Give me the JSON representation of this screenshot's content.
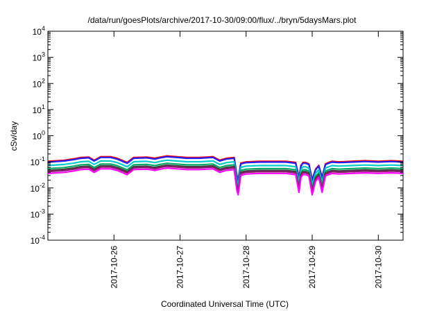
{
  "chart_data": {
    "type": "line",
    "title": "/data/run/goesPlots/archive/2017-10-30/09:00/flux/../bryn/5daysMars.plot",
    "xlabel": "Coordinated Universal Time (UTC)",
    "ylabel": "cSv/day",
    "y_scale": "log",
    "ylim": [
      0.0001,
      10000
    ],
    "xlim": [
      "2017-10-25 00:00",
      "2017-10-30 09:00"
    ],
    "x_ticks": [
      "2017-10-26",
      "2017-10-27",
      "2017-10-28",
      "2017-10-29",
      "2017-10-30"
    ],
    "y_ticks": [
      {
        "base": "10",
        "exp": "-4"
      },
      {
        "base": "10",
        "exp": "-3"
      },
      {
        "base": "10",
        "exp": "-2"
      },
      {
        "base": "10",
        "exp": "-1"
      },
      {
        "base": "10",
        "exp": "0"
      },
      {
        "base": "10",
        "exp": "1"
      },
      {
        "base": "10",
        "exp": "2"
      },
      {
        "base": "10",
        "exp": "3"
      },
      {
        "base": "10",
        "exp": "4"
      }
    ],
    "grid": false,
    "legend": "none",
    "base_profile": {
      "x_days": [
        0.0,
        0.25,
        0.4,
        0.5,
        0.62,
        0.7,
        0.8,
        0.95,
        1.05,
        1.2,
        1.3,
        1.5,
        1.62,
        1.7,
        1.8,
        1.95,
        2.1,
        2.3,
        2.5,
        2.6,
        2.7,
        2.82,
        2.86,
        2.88,
        2.92,
        3.0,
        3.2,
        3.4,
        3.6,
        3.75,
        3.8,
        3.83,
        3.86,
        3.9,
        3.95,
        4.0,
        4.05,
        4.1,
        4.15,
        4.2,
        4.25,
        4.3,
        4.4,
        4.6,
        4.8,
        5.0,
        5.2,
        5.375
      ],
      "factor": [
        1.0,
        1.1,
        1.25,
        1.4,
        1.45,
        1.1,
        1.5,
        1.5,
        1.3,
        0.9,
        1.4,
        1.45,
        1.3,
        1.45,
        1.6,
        1.5,
        1.4,
        1.4,
        1.5,
        1.1,
        1.3,
        1.4,
        0.3,
        0.2,
        0.85,
        0.95,
        1.0,
        1.0,
        1.0,
        0.9,
        0.25,
        0.7,
        0.9,
        0.9,
        0.8,
        0.2,
        0.5,
        0.7,
        0.25,
        0.8,
        0.9,
        1.0,
        0.95,
        1.0,
        1.05,
        1.0,
        1.05,
        1.0
      ]
    },
    "series": [
      {
        "color": "#ff0000",
        "level": 0.105
      },
      {
        "color": "#2020ff",
        "level": 0.098
      },
      {
        "color": "#00cccc",
        "level": 0.072
      },
      {
        "color": "#00aa66",
        "level": 0.055
      },
      {
        "color": "#404040",
        "level": 0.047
      },
      {
        "color": "#8a1a6a",
        "level": 0.042
      },
      {
        "color": "#ff00ff",
        "level": 0.036
      }
    ]
  }
}
